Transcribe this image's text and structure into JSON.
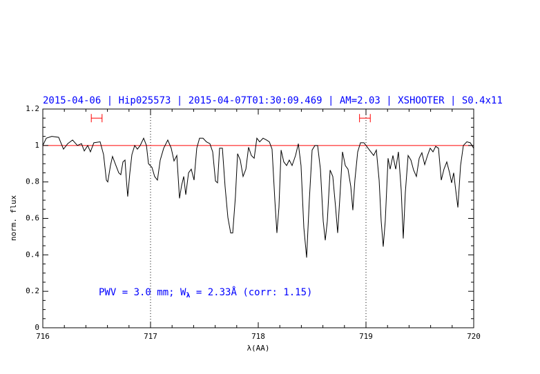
{
  "chart_data": {
    "type": "line",
    "title": "2015-04-06 | Hip025573 | 2015-04-07T01:30:09.469 | AM=2.03 | XSHOOTER | S0.4x11",
    "x_label": "λ(AA)",
    "y_label": "norm. flux",
    "annotation": {
      "prefix": "PWV = 3.0 mm; W",
      "subscript": "λ",
      "suffix": " = 2.33Å (corr: 1.15)"
    },
    "xlim": [
      716,
      720
    ],
    "ylim": [
      0,
      1.2
    ],
    "xticks": [
      716,
      717,
      718,
      719,
      720
    ],
    "yticks": [
      0,
      0.2,
      0.4,
      0.6,
      0.8,
      1,
      1.2
    ],
    "xminorticks": [
      716.2,
      716.4,
      716.6,
      716.8,
      717.2,
      717.4,
      717.6,
      717.8,
      718.2,
      718.4,
      718.6,
      718.8,
      719.2,
      719.4,
      719.6,
      719.8
    ],
    "yminorticks": [
      0.05,
      0.1,
      0.15,
      0.25,
      0.3,
      0.35,
      0.45,
      0.5,
      0.55,
      0.65,
      0.7,
      0.75,
      0.85,
      0.9,
      0.95,
      1.05,
      1.1,
      1.15
    ],
    "vlines": [
      717,
      719
    ],
    "reference_line": {
      "value": 1,
      "color": "#ff0000"
    },
    "ranges": {
      "color": "#ff0000",
      "y": 1.15,
      "spans": [
        [
          716.45,
          716.55
        ],
        [
          718.94,
          719.04
        ]
      ]
    },
    "series": [
      {
        "color": "#000000",
        "x": [
          716.0,
          716.032,
          716.083,
          716.147,
          716.192,
          716.231,
          716.276,
          716.321,
          716.359,
          716.385,
          716.417,
          716.442,
          716.474,
          716.532,
          716.564,
          716.59,
          716.603,
          716.628,
          716.647,
          716.679,
          716.705,
          716.724,
          716.744,
          716.763,
          716.776,
          716.788,
          716.808,
          716.827,
          716.853,
          716.878,
          716.904,
          716.936,
          716.962,
          716.981,
          717.013,
          717.038,
          717.064,
          717.09,
          717.122,
          717.16,
          717.192,
          717.218,
          717.244,
          717.269,
          717.288,
          717.308,
          717.327,
          717.353,
          717.378,
          717.404,
          717.429,
          717.455,
          717.487,
          717.519,
          717.551,
          717.577,
          717.603,
          717.622,
          717.641,
          717.667,
          717.692,
          717.718,
          717.744,
          717.763,
          717.788,
          717.808,
          717.833,
          717.859,
          717.885,
          717.91,
          717.936,
          717.962,
          717.987,
          718.013,
          718.045,
          718.077,
          718.103,
          718.128,
          718.154,
          718.173,
          718.192,
          718.212,
          718.237,
          718.263,
          718.288,
          718.314,
          718.346,
          718.372,
          718.397,
          718.423,
          718.449,
          718.474,
          718.5,
          718.526,
          718.551,
          718.577,
          718.603,
          718.622,
          718.641,
          718.667,
          718.692,
          718.718,
          718.737,
          718.756,
          718.782,
          718.808,
          718.833,
          718.859,
          718.878,
          718.897,
          718.923,
          718.949,
          718.981,
          719.013,
          719.045,
          719.071,
          719.096,
          719.122,
          719.141,
          719.16,
          719.179,
          719.205,
          719.224,
          719.25,
          719.276,
          719.301,
          719.327,
          719.346,
          719.365,
          719.391,
          719.417,
          719.442,
          719.468,
          719.494,
          719.519,
          719.545,
          719.571,
          719.596,
          719.622,
          719.647,
          719.673,
          719.699,
          719.724,
          719.75,
          719.776,
          719.795,
          719.814,
          719.833,
          719.853,
          719.878,
          719.904,
          719.936,
          719.968,
          720.0
        ],
        "values": [
          1.0,
          1.04,
          1.05,
          1.045,
          0.98,
          1.01,
          1.03,
          1.0,
          1.01,
          0.97,
          1.0,
          0.965,
          1.015,
          1.02,
          0.95,
          0.81,
          0.8,
          0.89,
          0.94,
          0.89,
          0.85,
          0.84,
          0.91,
          0.92,
          0.81,
          0.72,
          0.85,
          0.95,
          1.0,
          0.98,
          1.0,
          1.04,
          1.0,
          0.9,
          0.88,
          0.83,
          0.81,
          0.92,
          0.985,
          1.03,
          0.985,
          0.915,
          0.945,
          0.71,
          0.78,
          0.83,
          0.73,
          0.85,
          0.87,
          0.81,
          0.985,
          1.04,
          1.04,
          1.02,
          1.01,
          0.965,
          0.805,
          0.795,
          0.985,
          0.985,
          0.775,
          0.605,
          0.52,
          0.52,
          0.72,
          0.955,
          0.92,
          0.83,
          0.87,
          0.99,
          0.945,
          0.93,
          1.04,
          1.02,
          1.04,
          1.03,
          1.02,
          0.98,
          0.7,
          0.52,
          0.66,
          0.975,
          0.91,
          0.89,
          0.92,
          0.89,
          0.945,
          1.01,
          0.89,
          0.55,
          0.385,
          0.7,
          0.975,
          1.0,
          1.0,
          0.87,
          0.585,
          0.48,
          0.585,
          0.865,
          0.83,
          0.66,
          0.52,
          0.7,
          0.965,
          0.89,
          0.87,
          0.775,
          0.645,
          0.81,
          0.965,
          1.015,
          1.015,
          0.99,
          0.965,
          0.945,
          0.975,
          0.81,
          0.585,
          0.445,
          0.585,
          0.93,
          0.87,
          0.945,
          0.87,
          0.965,
          0.755,
          0.49,
          0.74,
          0.945,
          0.92,
          0.865,
          0.83,
          0.93,
          0.96,
          0.895,
          0.945,
          0.985,
          0.965,
          0.995,
          0.985,
          0.81,
          0.87,
          0.91,
          0.85,
          0.795,
          0.85,
          0.755,
          0.66,
          0.89,
          1.0,
          1.02,
          1.015,
          0.985
        ]
      }
    ]
  }
}
